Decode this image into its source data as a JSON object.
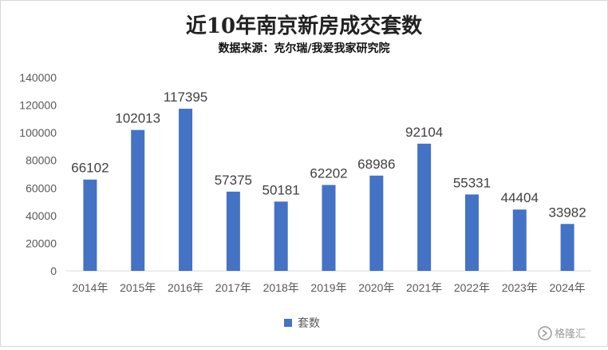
{
  "chart_data": {
    "type": "bar",
    "title": "近10年南京新房成交套数",
    "subtitle": "数据来源：克尔瑞/我爱我家研究院",
    "categories": [
      "2014年",
      "2015年",
      "2016年",
      "2017年",
      "2018年",
      "2019年",
      "2020年",
      "2021年",
      "2022年",
      "2023年",
      "2024年"
    ],
    "series": [
      {
        "name": "套数",
        "color": "#4472C4",
        "values": [
          66102,
          102013,
          117395,
          57375,
          50181,
          62202,
          68986,
          92104,
          55331,
          44404,
          33982
        ]
      }
    ],
    "ylim": [
      0,
      140000
    ],
    "yticks": [
      0,
      20000,
      40000,
      60000,
      80000,
      100000,
      120000,
      140000
    ],
    "grid": false,
    "legend": "bottom",
    "data_labels": true
  },
  "watermark": {
    "text": "格隆汇",
    "icon": "gelonghui-logo-icon"
  }
}
